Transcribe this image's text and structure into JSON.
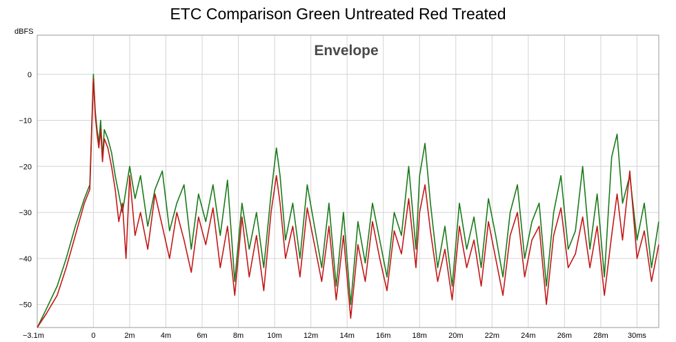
{
  "chart_data": {
    "type": "line",
    "title": "ETC Comparison Green Untreated Red Treated",
    "subtitle": "Envelope",
    "ylabel": "dBFS",
    "xlabel": "",
    "xlim": [
      -3.1,
      31.2
    ],
    "ylim": [
      -55,
      8.5
    ],
    "grid": true,
    "x_ticks": [
      {
        "value": -3.1,
        "label": "−3.1m"
      },
      {
        "value": 0,
        "label": "0"
      },
      {
        "value": 2,
        "label": "2m"
      },
      {
        "value": 4,
        "label": "4m"
      },
      {
        "value": 6,
        "label": "6m"
      },
      {
        "value": 8,
        "label": "8m"
      },
      {
        "value": 10,
        "label": "10m"
      },
      {
        "value": 12,
        "label": "12m"
      },
      {
        "value": 14,
        "label": "14m"
      },
      {
        "value": 16,
        "label": "16m"
      },
      {
        "value": 18,
        "label": "18m"
      },
      {
        "value": 20,
        "label": "20m"
      },
      {
        "value": 22,
        "label": "22m"
      },
      {
        "value": 24,
        "label": "24m"
      },
      {
        "value": 26,
        "label": "26m"
      },
      {
        "value": 28,
        "label": "28m"
      },
      {
        "value": 30,
        "label": "30ms"
      }
    ],
    "y_ticks": [
      {
        "value": 0,
        "label": "0"
      },
      {
        "value": -10,
        "label": "−10"
      },
      {
        "value": -20,
        "label": "−20"
      },
      {
        "value": -30,
        "label": "−30"
      },
      {
        "value": -40,
        "label": "−40"
      },
      {
        "value": -50,
        "label": "−50"
      }
    ],
    "series": [
      {
        "color": "#1a7a1a",
        "x": [
          -3.1,
          -2.6,
          -2.0,
          -1.5,
          -1.0,
          -0.5,
          -0.2,
          0.0,
          0.1,
          0.2,
          0.3,
          0.4,
          0.5,
          0.6,
          0.8,
          1.0,
          1.2,
          1.4,
          1.6,
          1.8,
          2.0,
          2.3,
          2.6,
          3.0,
          3.4,
          3.8,
          4.2,
          4.6,
          5.0,
          5.4,
          5.8,
          6.2,
          6.6,
          7.0,
          7.4,
          7.8,
          8.2,
          8.6,
          9.0,
          9.4,
          9.8,
          10.1,
          10.3,
          10.6,
          11.0,
          11.4,
          11.8,
          12.2,
          12.6,
          13.0,
          13.4,
          13.8,
          14.2,
          14.6,
          15.0,
          15.4,
          15.8,
          16.2,
          16.6,
          17.0,
          17.4,
          17.8,
          18.0,
          18.3,
          18.6,
          19.0,
          19.4,
          19.8,
          20.2,
          20.6,
          21.0,
          21.4,
          21.8,
          22.2,
          22.6,
          23.0,
          23.4,
          23.8,
          24.2,
          24.6,
          25.0,
          25.4,
          25.8,
          26.2,
          26.6,
          27.0,
          27.4,
          27.8,
          28.2,
          28.6,
          28.9,
          29.2,
          29.6,
          30.0,
          30.4,
          30.8,
          31.2
        ],
        "values": [
          -55,
          -51,
          -46,
          -40,
          -33,
          -27,
          -24,
          0,
          -8,
          -12,
          -15,
          -10,
          -18,
          -12,
          -14,
          -17,
          -22,
          -26,
          -30,
          -25,
          -20,
          -27,
          -22,
          -33,
          -25,
          -21,
          -34,
          -28,
          -24,
          -38,
          -26,
          -32,
          -24,
          -35,
          -23,
          -45,
          -28,
          -38,
          -30,
          -42,
          -26,
          -16,
          -22,
          -36,
          -28,
          -40,
          -24,
          -33,
          -42,
          -28,
          -46,
          -30,
          -50,
          -32,
          -41,
          -28,
          -36,
          -44,
          -30,
          -35,
          -20,
          -38,
          -22,
          -15,
          -28,
          -42,
          -33,
          -46,
          -28,
          -38,
          -31,
          -42,
          -27,
          -35,
          -44,
          -30,
          -24,
          -40,
          -32,
          -28,
          -46,
          -30,
          -22,
          -38,
          -34,
          -20,
          -38,
          -26,
          -44,
          -18,
          -13,
          -28,
          -22,
          -36,
          -28,
          -42,
          -32
        ]
      },
      {
        "color": "#c31717",
        "x": [
          -3.1,
          -2.6,
          -2.0,
          -1.5,
          -1.0,
          -0.5,
          -0.2,
          0.0,
          0.1,
          0.2,
          0.3,
          0.4,
          0.5,
          0.6,
          0.8,
          1.0,
          1.2,
          1.4,
          1.6,
          1.8,
          2.0,
          2.3,
          2.6,
          3.0,
          3.4,
          3.8,
          4.2,
          4.6,
          5.0,
          5.4,
          5.8,
          6.2,
          6.6,
          7.0,
          7.4,
          7.8,
          8.2,
          8.6,
          9.0,
          9.4,
          9.8,
          10.1,
          10.3,
          10.6,
          11.0,
          11.4,
          11.8,
          12.2,
          12.6,
          13.0,
          13.4,
          13.8,
          14.2,
          14.6,
          15.0,
          15.4,
          15.8,
          16.2,
          16.6,
          17.0,
          17.4,
          17.8,
          18.0,
          18.3,
          18.6,
          19.0,
          19.4,
          19.8,
          20.2,
          20.6,
          21.0,
          21.4,
          21.8,
          22.2,
          22.6,
          23.0,
          23.4,
          23.8,
          24.2,
          24.6,
          25.0,
          25.4,
          25.8,
          26.2,
          26.6,
          27.0,
          27.4,
          27.8,
          28.2,
          28.6,
          28.9,
          29.2,
          29.6,
          30.0,
          30.4,
          30.8,
          31.2
        ],
        "values": [
          -55,
          -52,
          -48,
          -42,
          -35,
          -28,
          -25,
          -1,
          -9,
          -13,
          -16,
          -12,
          -19,
          -14,
          -16,
          -20,
          -25,
          -32,
          -28,
          -40,
          -22,
          -35,
          -30,
          -38,
          -26,
          -33,
          -40,
          -30,
          -36,
          -43,
          -31,
          -37,
          -29,
          -42,
          -33,
          -48,
          -31,
          -44,
          -35,
          -47,
          -30,
          -22,
          -28,
          -40,
          -33,
          -44,
          -29,
          -37,
          -45,
          -33,
          -49,
          -35,
          -53,
          -37,
          -45,
          -32,
          -40,
          -47,
          -34,
          -39,
          -27,
          -42,
          -30,
          -24,
          -34,
          -45,
          -38,
          -49,
          -33,
          -42,
          -36,
          -46,
          -32,
          -40,
          -48,
          -35,
          -30,
          -44,
          -36,
          -33,
          -50,
          -35,
          -29,
          -42,
          -39,
          -31,
          -42,
          -33,
          -48,
          -35,
          -26,
          -36,
          -21,
          -40,
          -34,
          -45,
          -37
        ]
      }
    ]
  }
}
